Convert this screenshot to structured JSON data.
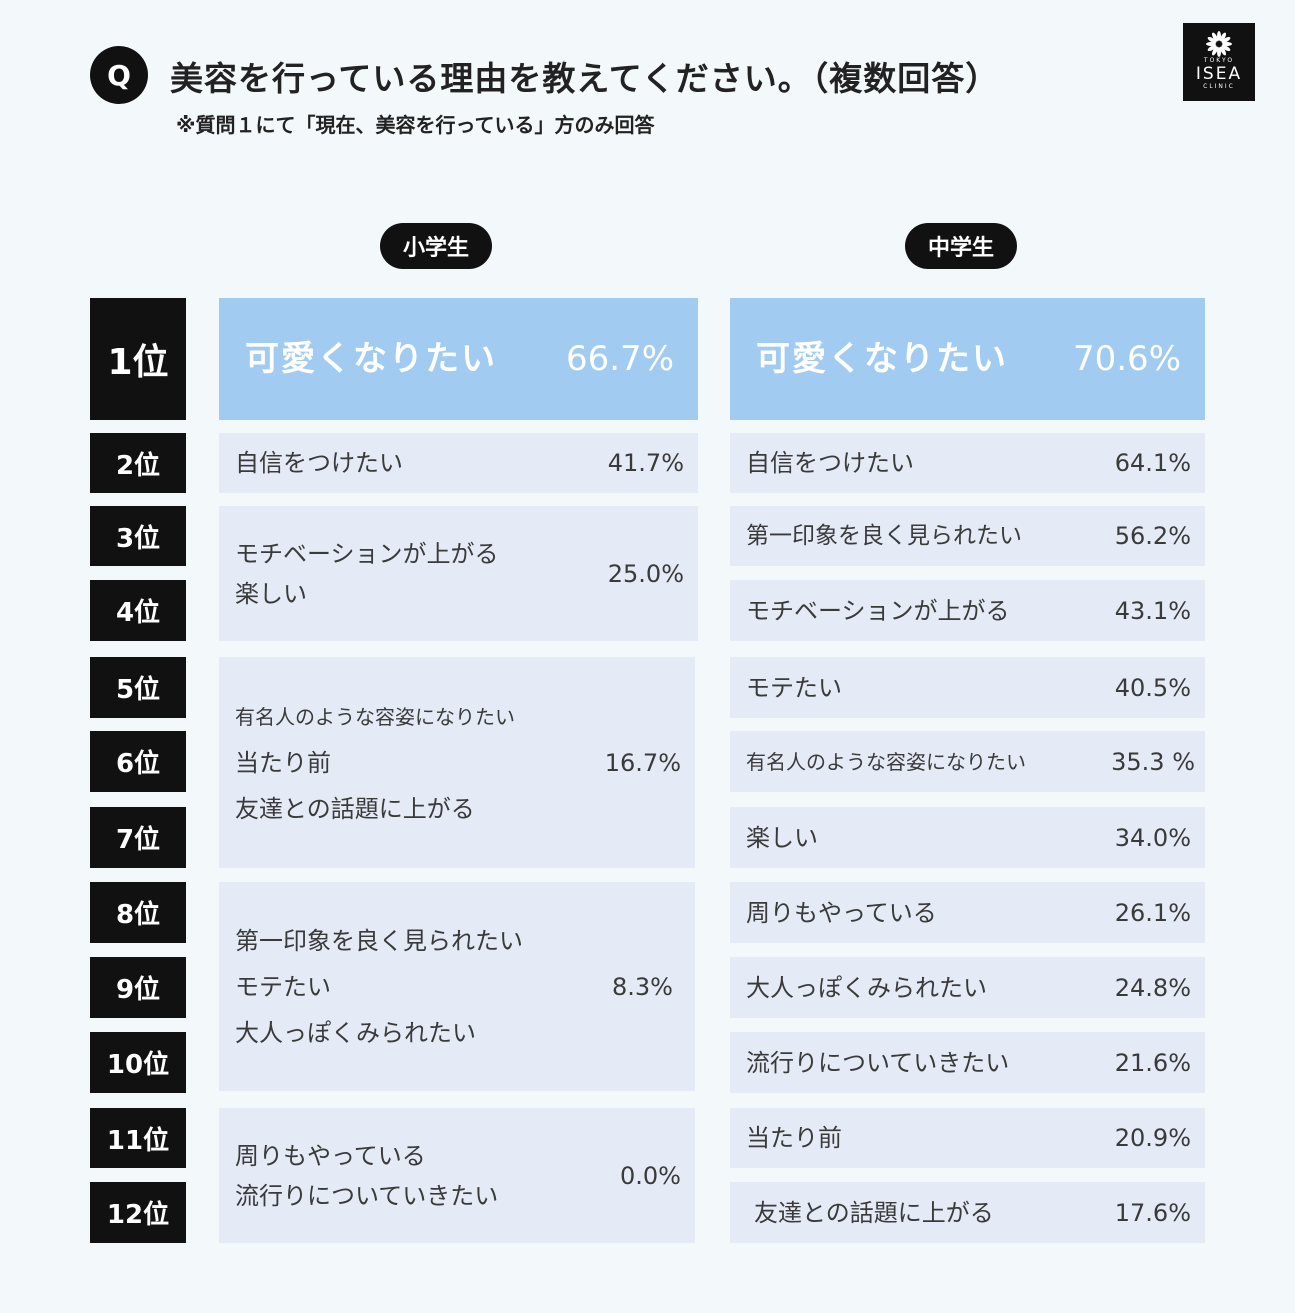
{
  "header": {
    "q_mark": "Q",
    "title": "美容を行っている理由を教えてください。（複数回答）",
    "subtitle": "※質問１にて「現在、美容を行っている」方のみ回答"
  },
  "logo": {
    "small_top": "TOKYO",
    "main": "ISEA",
    "small_bottom": "CLINIC"
  },
  "columns": {
    "elementary": "小学生",
    "middle": "中学生"
  },
  "ranks": [
    "1位",
    "2位",
    "3位",
    "4位",
    "5位",
    "6位",
    "7位",
    "8位",
    "9位",
    "10位",
    "11位",
    "12位"
  ],
  "elementary": [
    {
      "lines": [
        "可愛くなりたい"
      ],
      "pct": "66.7%"
    },
    {
      "lines": [
        "自信をつけたい"
      ],
      "pct": "41.7%"
    },
    {
      "lines": [
        "モチベーションが上がる",
        "楽しい"
      ],
      "pct": "25.0%"
    },
    {
      "lines": [
        "有名人のような容姿になりたい",
        "当たり前",
        "友達との話題に上がる"
      ],
      "pct": "16.7%"
    },
    {
      "lines": [
        "第一印象を良く見られたい",
        "モテたい",
        "大人っぽくみられたい"
      ],
      "pct": "8.3%"
    },
    {
      "lines": [
        "周りもやっている",
        "流行りについていきたい"
      ],
      "pct": "0.0%"
    }
  ],
  "middle": [
    {
      "label": "可愛くなりたい",
      "pct": "70.6%"
    },
    {
      "label": "自信をつけたい",
      "pct": "64.1%"
    },
    {
      "label": "第一印象を良く見られたい",
      "pct": "56.2%"
    },
    {
      "label": "モチベーションが上がる",
      "pct": "43.1%"
    },
    {
      "label": "モテたい",
      "pct": "40.5%"
    },
    {
      "label": "有名人のような容姿になりたい",
      "pct": "35.3 %"
    },
    {
      "label": "楽しい",
      "pct": "34.0%"
    },
    {
      "label": "周りもやっている",
      "pct": "26.1%"
    },
    {
      "label": "大人っぽくみられたい",
      "pct": "24.8%"
    },
    {
      "label": "流行りについていきたい",
      "pct": "21.6%"
    },
    {
      "label": "当たり前",
      "pct": "20.9%"
    },
    {
      "label": "友達との話題に上がる",
      "pct": "17.6%"
    }
  ]
}
